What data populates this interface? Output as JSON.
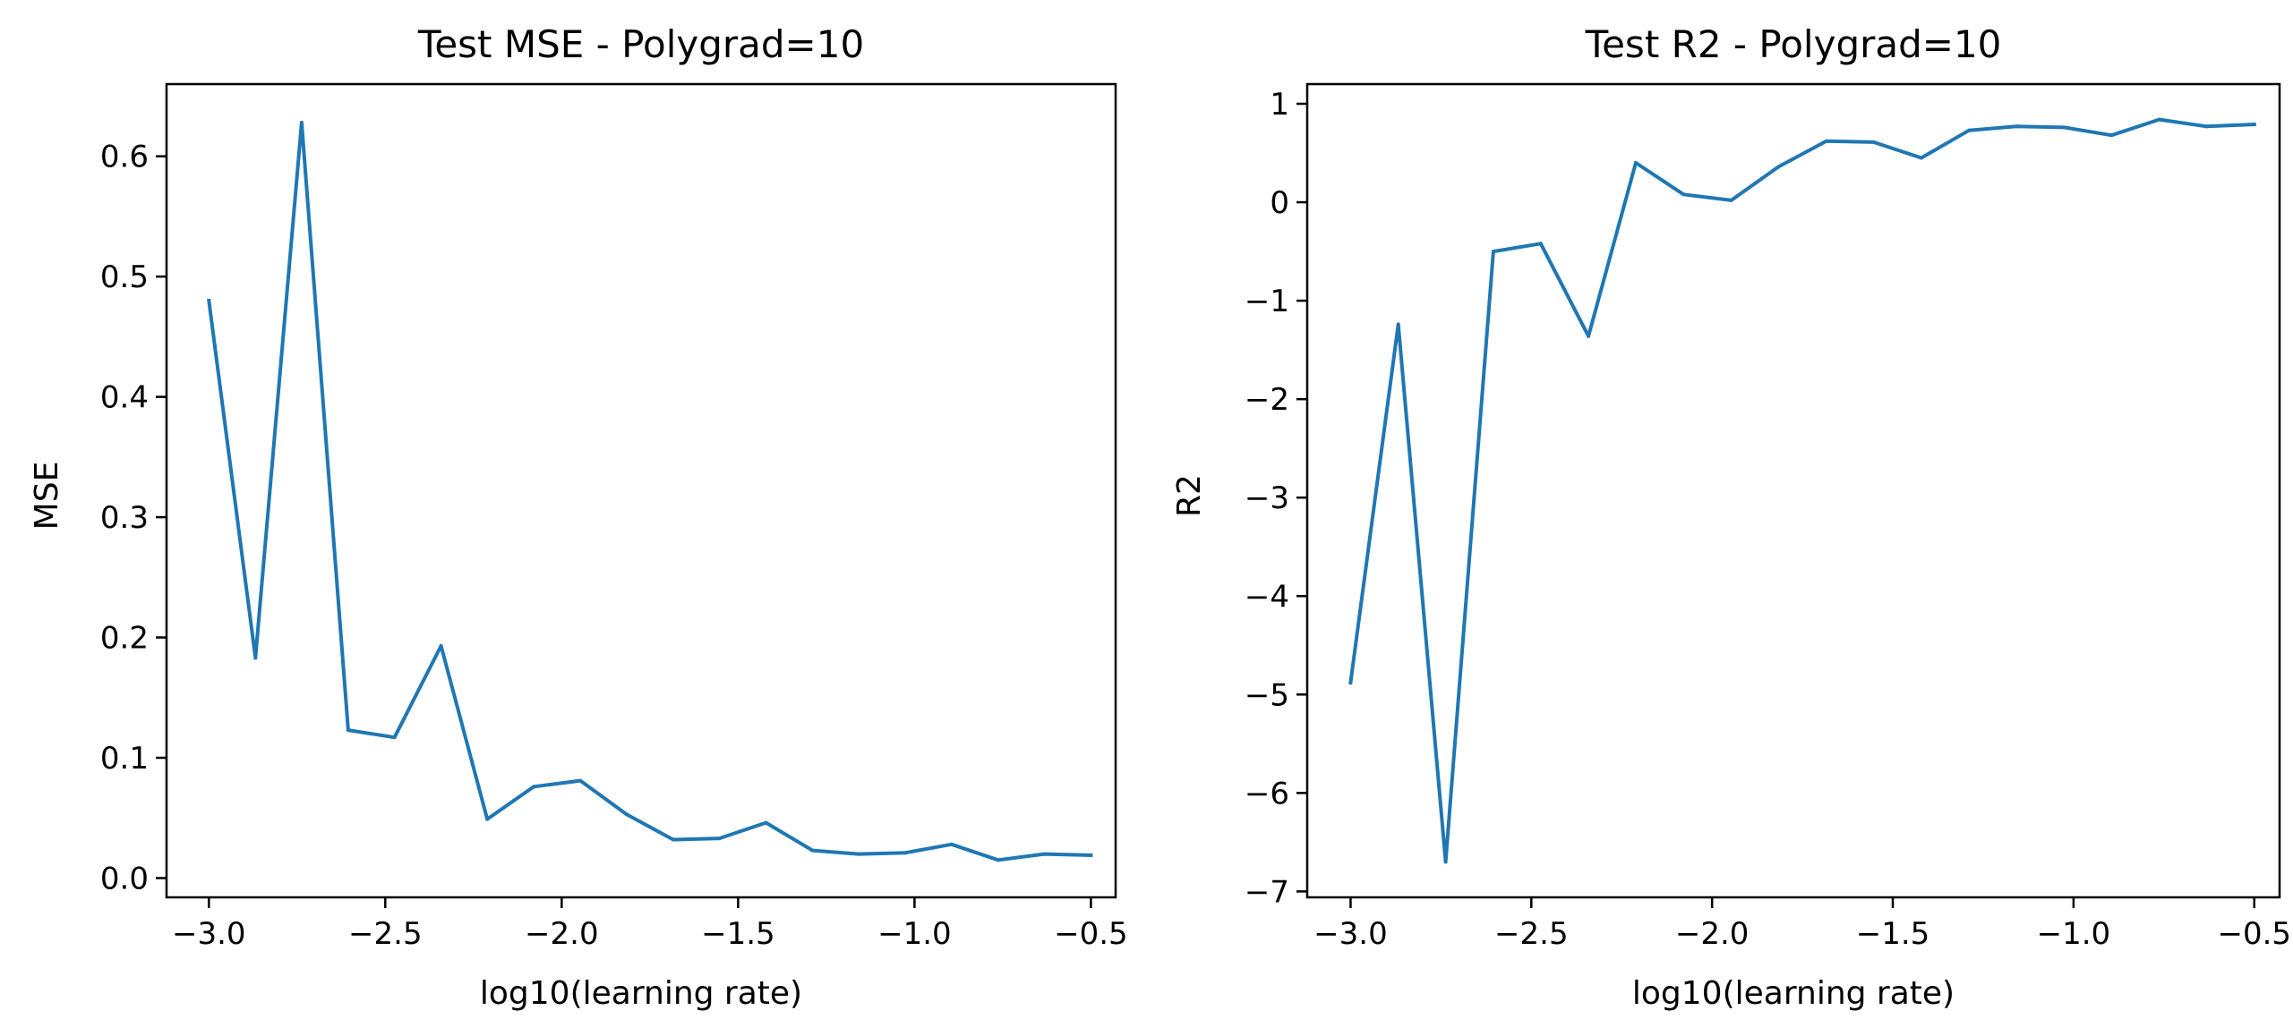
{
  "chart_data": [
    {
      "type": "line",
      "title": "Test MSE - Polygrad=10",
      "xlabel": "log10(learning rate)",
      "ylabel": "MSE",
      "xlim": [
        -3.12,
        -0.43
      ],
      "ylim": [
        -0.016,
        0.66
      ],
      "xticks": [
        -3.0,
        -2.5,
        -2.0,
        -1.5,
        -1.0,
        -0.5
      ],
      "xtick_labels": [
        "−3.0",
        "−2.5",
        "−2.0",
        "−1.5",
        "−1.0",
        "−0.5"
      ],
      "yticks": [
        0.0,
        0.1,
        0.2,
        0.3,
        0.4,
        0.5,
        0.6
      ],
      "ytick_labels": [
        "0.0",
        "0.1",
        "0.2",
        "0.3",
        "0.4",
        "0.5",
        "0.6"
      ],
      "grid": false,
      "color": "#1f77b4",
      "x": [
        -3.0,
        -2.868,
        -2.737,
        -2.605,
        -2.474,
        -2.342,
        -2.211,
        -2.079,
        -1.947,
        -1.816,
        -1.684,
        -1.553,
        -1.421,
        -1.289,
        -1.158,
        -1.026,
        -0.895,
        -0.763,
        -0.632,
        -0.5
      ],
      "values": [
        0.48,
        0.183,
        0.628,
        0.123,
        0.117,
        0.193,
        0.049,
        0.076,
        0.081,
        0.053,
        0.032,
        0.033,
        0.046,
        0.023,
        0.02,
        0.021,
        0.028,
        0.015,
        0.02,
        0.019
      ]
    },
    {
      "type": "line",
      "title": "Test R2 - Polygrad=10",
      "xlabel": "log10(learning rate)",
      "ylabel": "R2",
      "xlim": [
        -3.12,
        -0.43
      ],
      "ylim": [
        -7.06,
        1.2
      ],
      "xticks": [
        -3.0,
        -2.5,
        -2.0,
        -1.5,
        -1.0,
        -0.5
      ],
      "xtick_labels": [
        "−3.0",
        "−2.5",
        "−2.0",
        "−1.5",
        "−1.0",
        "−0.5"
      ],
      "yticks": [
        -7,
        -6,
        -5,
        -4,
        -3,
        -2,
        -1,
        0,
        1
      ],
      "ytick_labels": [
        "−7",
        "−6",
        "−5",
        "−4",
        "−3",
        "−2",
        "−1",
        "0",
        "1"
      ],
      "grid": false,
      "color": "#1f77b4",
      "x": [
        -3.0,
        -2.868,
        -2.737,
        -2.605,
        -2.474,
        -2.342,
        -2.211,
        -2.079,
        -1.947,
        -1.816,
        -1.684,
        -1.553,
        -1.421,
        -1.289,
        -1.158,
        -1.026,
        -0.895,
        -0.763,
        -0.632,
        -0.5
      ],
      "values": [
        -4.88,
        -1.24,
        -6.7,
        -0.5,
        -0.42,
        -1.36,
        0.4,
        0.08,
        0.02,
        0.36,
        0.62,
        0.61,
        0.45,
        0.73,
        0.77,
        0.76,
        0.68,
        0.84,
        0.77,
        0.79
      ]
    }
  ]
}
